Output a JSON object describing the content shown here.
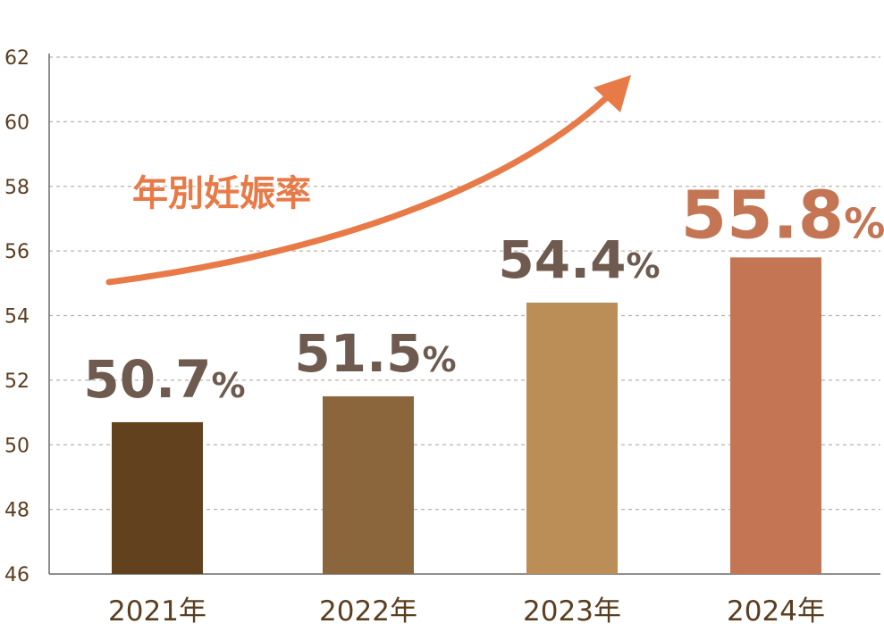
{
  "chart_data": {
    "type": "bar",
    "categories": [
      "2021年",
      "2022年",
      "2023年",
      "2024年"
    ],
    "values": [
      50.7,
      51.5,
      54.4,
      55.8
    ],
    "value_labels": [
      "50.7",
      "51.5",
      "54.4",
      "55.8"
    ],
    "value_unit": "%",
    "ylim": [
      46,
      62
    ],
    "yticks": [
      46,
      48,
      50,
      52,
      54,
      56,
      58,
      60,
      62
    ],
    "grid": true,
    "bar_colors": [
      "#62421e",
      "#8b653b",
      "#bb8e58",
      "#c47554"
    ],
    "label_colors": [
      "#6e5a4e",
      "#6e5a4e",
      "#6e5a4e",
      "#c47554"
    ],
    "trend_arrow": {
      "label": "年別妊娠率",
      "color": "#e87a48"
    },
    "title": "",
    "xlabel": "",
    "ylabel": ""
  }
}
